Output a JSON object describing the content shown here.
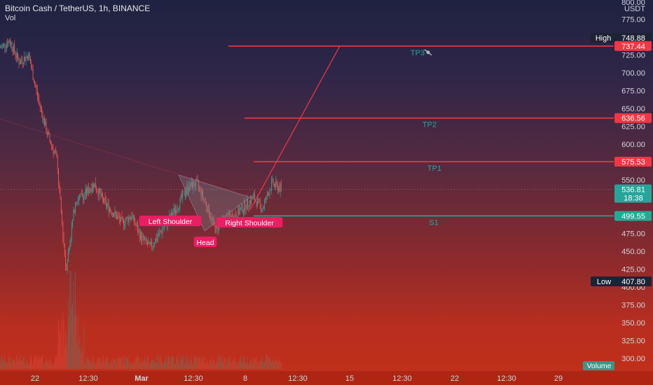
{
  "header": {
    "title": "Bitcoin Cash / TetherUS, 1h, BINANCE",
    "subtitle": "Vol"
  },
  "axis": {
    "currency": "USDT",
    "top_partial_label": "800.00",
    "right_ticks": [
      "775.00",
      "750.00",
      "725.00",
      "700.00",
      "675.00",
      "650.00",
      "625.00",
      "600.00",
      "575.00",
      "550.00",
      "525.00",
      "500.00",
      "475.00",
      "450.00",
      "425.00",
      "400.00",
      "375.00",
      "350.00",
      "325.00",
      "300.00"
    ],
    "bottom_ticks": [
      "22",
      "12:30",
      "Mar",
      "12:30",
      "8",
      "12:30",
      "15",
      "12:30",
      "22",
      "12:30",
      "29"
    ]
  },
  "badges": {
    "high_label": "High",
    "high_value": "748.88",
    "low_label": "Low",
    "low_value": "407.80",
    "tp3": "737.44",
    "tp2": "636.56",
    "tp1": "575.53",
    "current": "536.81",
    "countdown": "18:38",
    "s1": "499.55",
    "volume_label": "Volume"
  },
  "levels": {
    "tp3_label": "TP3",
    "tp2_label": "TP2",
    "tp1_label": "TP1",
    "s1_label": "S1"
  },
  "pattern": {
    "left_shoulder": "Left Shoulder",
    "head": "Head",
    "right_shoulder": "Right Shoulder"
  },
  "colors": {
    "up": "#26a69a",
    "down": "#ef5350",
    "resistance": "#f23645",
    "support": "#22ab94",
    "label_bg": "#e91e63",
    "axis_text": "#d1d4dc",
    "badge_dark": "#1e2235"
  },
  "chart_data": {
    "type": "candlestick",
    "symbol": "BCH/USDT",
    "interval": "1h",
    "ylim": [
      300,
      800
    ],
    "price_path": [
      {
        "date": "Feb 19",
        "price": 735
      },
      {
        "date": "Feb 20",
        "price": 745
      },
      {
        "date": "Feb 20 12:00",
        "price": 715
      },
      {
        "date": "Feb 21",
        "price": 725
      },
      {
        "date": "Feb 21 12:00",
        "price": 665
      },
      {
        "date": "Feb 22",
        "price": 615
      },
      {
        "date": "Feb 22 12:00",
        "price": 580
      },
      {
        "date": "Feb 23",
        "price": 425
      },
      {
        "date": "Feb 23 12:00",
        "price": 520
      },
      {
        "date": "Feb 24",
        "price": 530
      },
      {
        "date": "Feb 24 12:00",
        "price": 545
      },
      {
        "date": "Feb 25",
        "price": 520
      },
      {
        "date": "Feb 25 12:00",
        "price": 505
      },
      {
        "date": "Feb 26",
        "price": 490
      },
      {
        "date": "Feb 26 12:00",
        "price": 500
      },
      {
        "date": "Feb 27",
        "price": 470
      },
      {
        "date": "Feb 27 12:00",
        "price": 455
      },
      {
        "date": "Feb 28",
        "price": 475
      },
      {
        "date": "Feb 28 12:00",
        "price": 495
      },
      {
        "date": "Mar 1",
        "price": 515
      },
      {
        "date": "Mar 2",
        "price": 540
      },
      {
        "date": "Mar 2 12:00",
        "price": 545
      },
      {
        "date": "Mar 3",
        "price": 515
      },
      {
        "date": "Mar 4",
        "price": 480
      },
      {
        "date": "Mar 4 12:00",
        "price": 495
      },
      {
        "date": "Mar 5",
        "price": 500
      },
      {
        "date": "Mar 6",
        "price": 512
      },
      {
        "date": "Mar 7",
        "price": 525
      },
      {
        "date": "Mar 8",
        "price": 510
      },
      {
        "date": "Mar 9",
        "price": 545
      },
      {
        "date": "Mar 9 12:00",
        "price": 537
      }
    ],
    "levels": [
      {
        "name": "TP3",
        "value": 737.44
      },
      {
        "name": "TP2",
        "value": 636.56
      },
      {
        "name": "TP1",
        "value": 575.53
      },
      {
        "name": "S1",
        "value": 499.55
      }
    ],
    "high": 748.88,
    "low": 407.8,
    "last": 536.81
  }
}
